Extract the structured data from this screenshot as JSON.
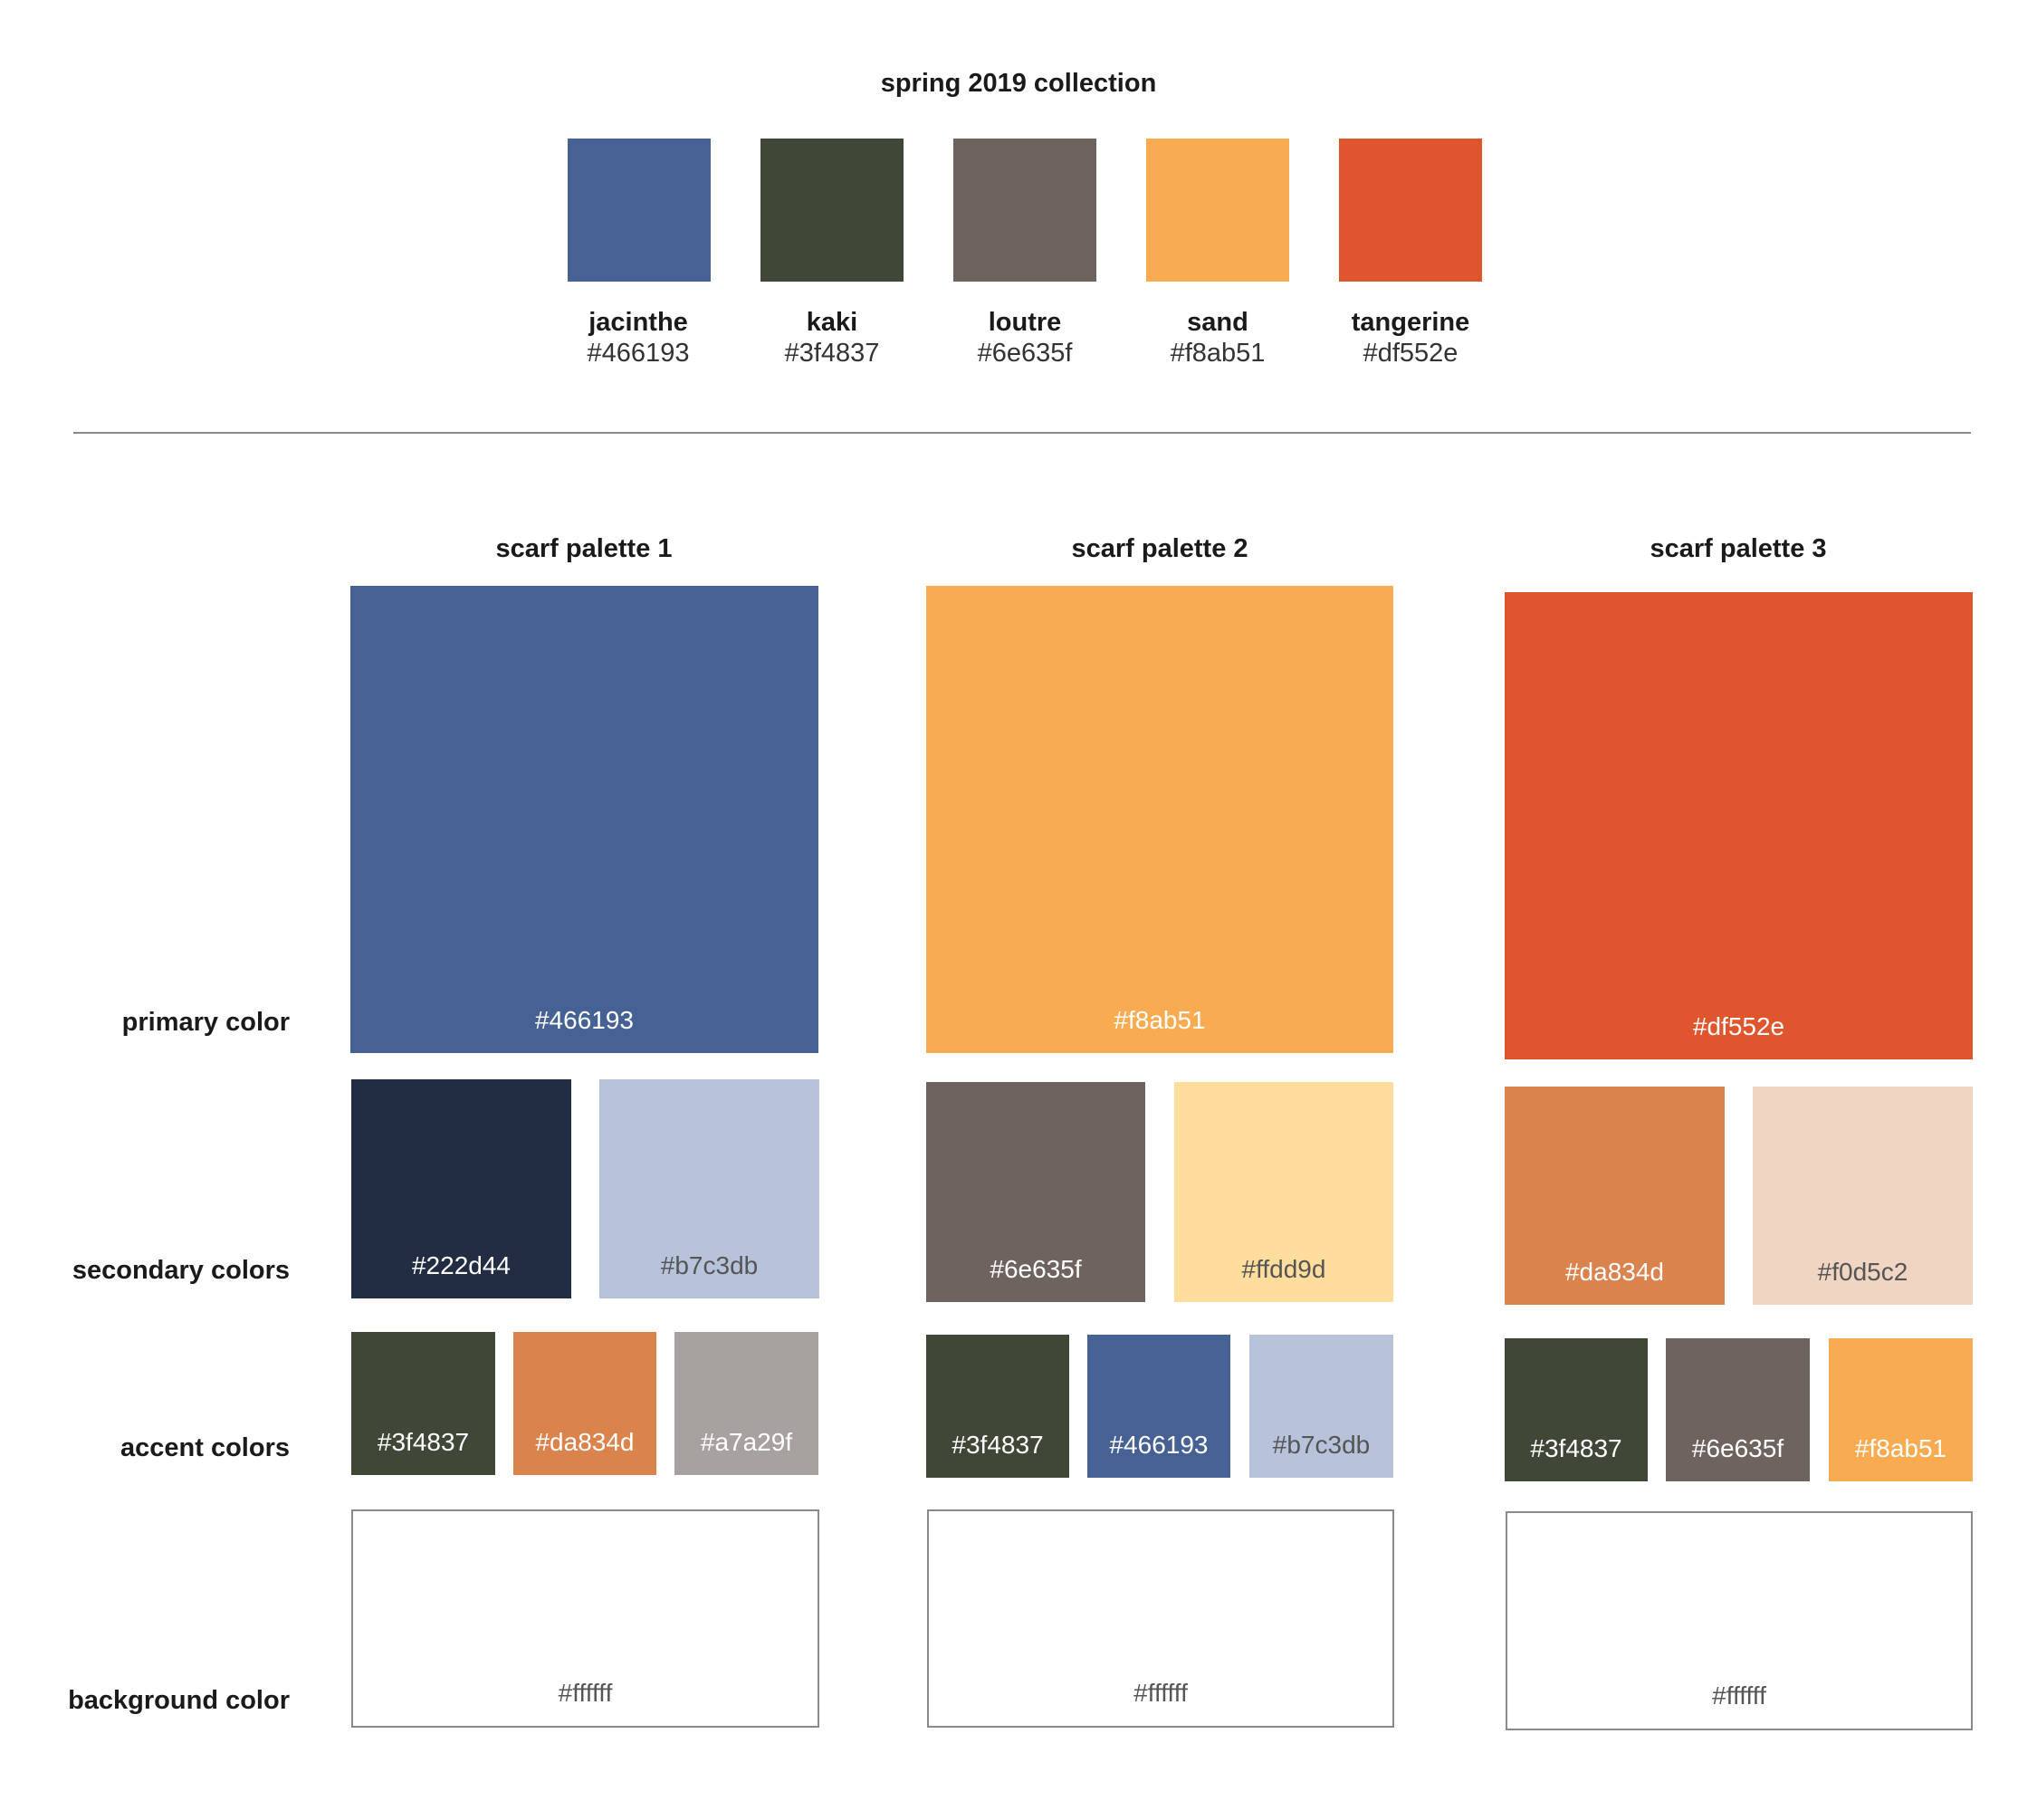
{
  "title": "spring 2019 collection",
  "collection": [
    {
      "name": "jacinthe",
      "hex": "#466193",
      "color": "#466193"
    },
    {
      "name": "kaki",
      "hex": "#3f4837",
      "color": "#3f4837"
    },
    {
      "name": "loutre",
      "hex": "#6e635f",
      "color": "#6e635f"
    },
    {
      "name": "sand",
      "hex": "#f8ab51",
      "color": "#f8ab51"
    },
    {
      "name": "tangerine",
      "hex": "#df552e",
      "color": "#df552e"
    }
  ],
  "row_labels": {
    "primary": "primary color",
    "secondary": "secondary colors",
    "accent": "accent colors",
    "background": "background color"
  },
  "palettes": [
    {
      "title": "scarf palette 1",
      "primary": {
        "hex": "#466193",
        "color": "#466193",
        "text_color": "#ffffff"
      },
      "secondary": [
        {
          "hex": "#222d44",
          "color": "#222d44",
          "text_color": "#ffffff"
        },
        {
          "hex": "#b7c3db",
          "color": "#b7c3db",
          "text_color": "#555555"
        }
      ],
      "accent": [
        {
          "hex": "#3f4837",
          "color": "#3f4837",
          "text_color": "#ffffff"
        },
        {
          "hex": "#da834d",
          "color": "#da834d",
          "text_color": "#ffffff"
        },
        {
          "hex": "#a7a29f",
          "color": "#a7a29f",
          "text_color": "#ffffff"
        }
      ],
      "background": {
        "hex": "#ffffff",
        "color": "#ffffff",
        "text_color": "#555555"
      }
    },
    {
      "title": "scarf palette 2",
      "primary": {
        "hex": "#f8ab51",
        "color": "#f8ab51",
        "text_color": "#ffffff"
      },
      "secondary": [
        {
          "hex": "#6e635f",
          "color": "#6e635f",
          "text_color": "#ffffff"
        },
        {
          "hex": "#ffdd9d",
          "color": "#ffdd9d",
          "text_color": "#555555"
        }
      ],
      "accent": [
        {
          "hex": "#3f4837",
          "color": "#3f4837",
          "text_color": "#ffffff"
        },
        {
          "hex": "#466193",
          "color": "#466193",
          "text_color": "#ffffff"
        },
        {
          "hex": "#b7c3db",
          "color": "#b7c3db",
          "text_color": "#555555"
        }
      ],
      "background": {
        "hex": "#ffffff",
        "color": "#ffffff",
        "text_color": "#555555"
      }
    },
    {
      "title": "scarf palette 3",
      "primary": {
        "hex": "#df552e",
        "color": "#df552e",
        "text_color": "#ffffff"
      },
      "secondary": [
        {
          "hex": "#da834d",
          "color": "#da834d",
          "text_color": "#ffffff"
        },
        {
          "hex": "#f0d5c2",
          "color": "#f0d5c2",
          "text_color": "#555555"
        }
      ],
      "accent": [
        {
          "hex": "#3f4837",
          "color": "#3f4837",
          "text_color": "#ffffff"
        },
        {
          "hex": "#6e635f",
          "color": "#6e635f",
          "text_color": "#ffffff"
        },
        {
          "hex": "#f8ab51",
          "color": "#f8ab51",
          "text_color": "#ffffff"
        }
      ],
      "background": {
        "hex": "#ffffff",
        "color": "#ffffff",
        "text_color": "#555555"
      }
    }
  ]
}
